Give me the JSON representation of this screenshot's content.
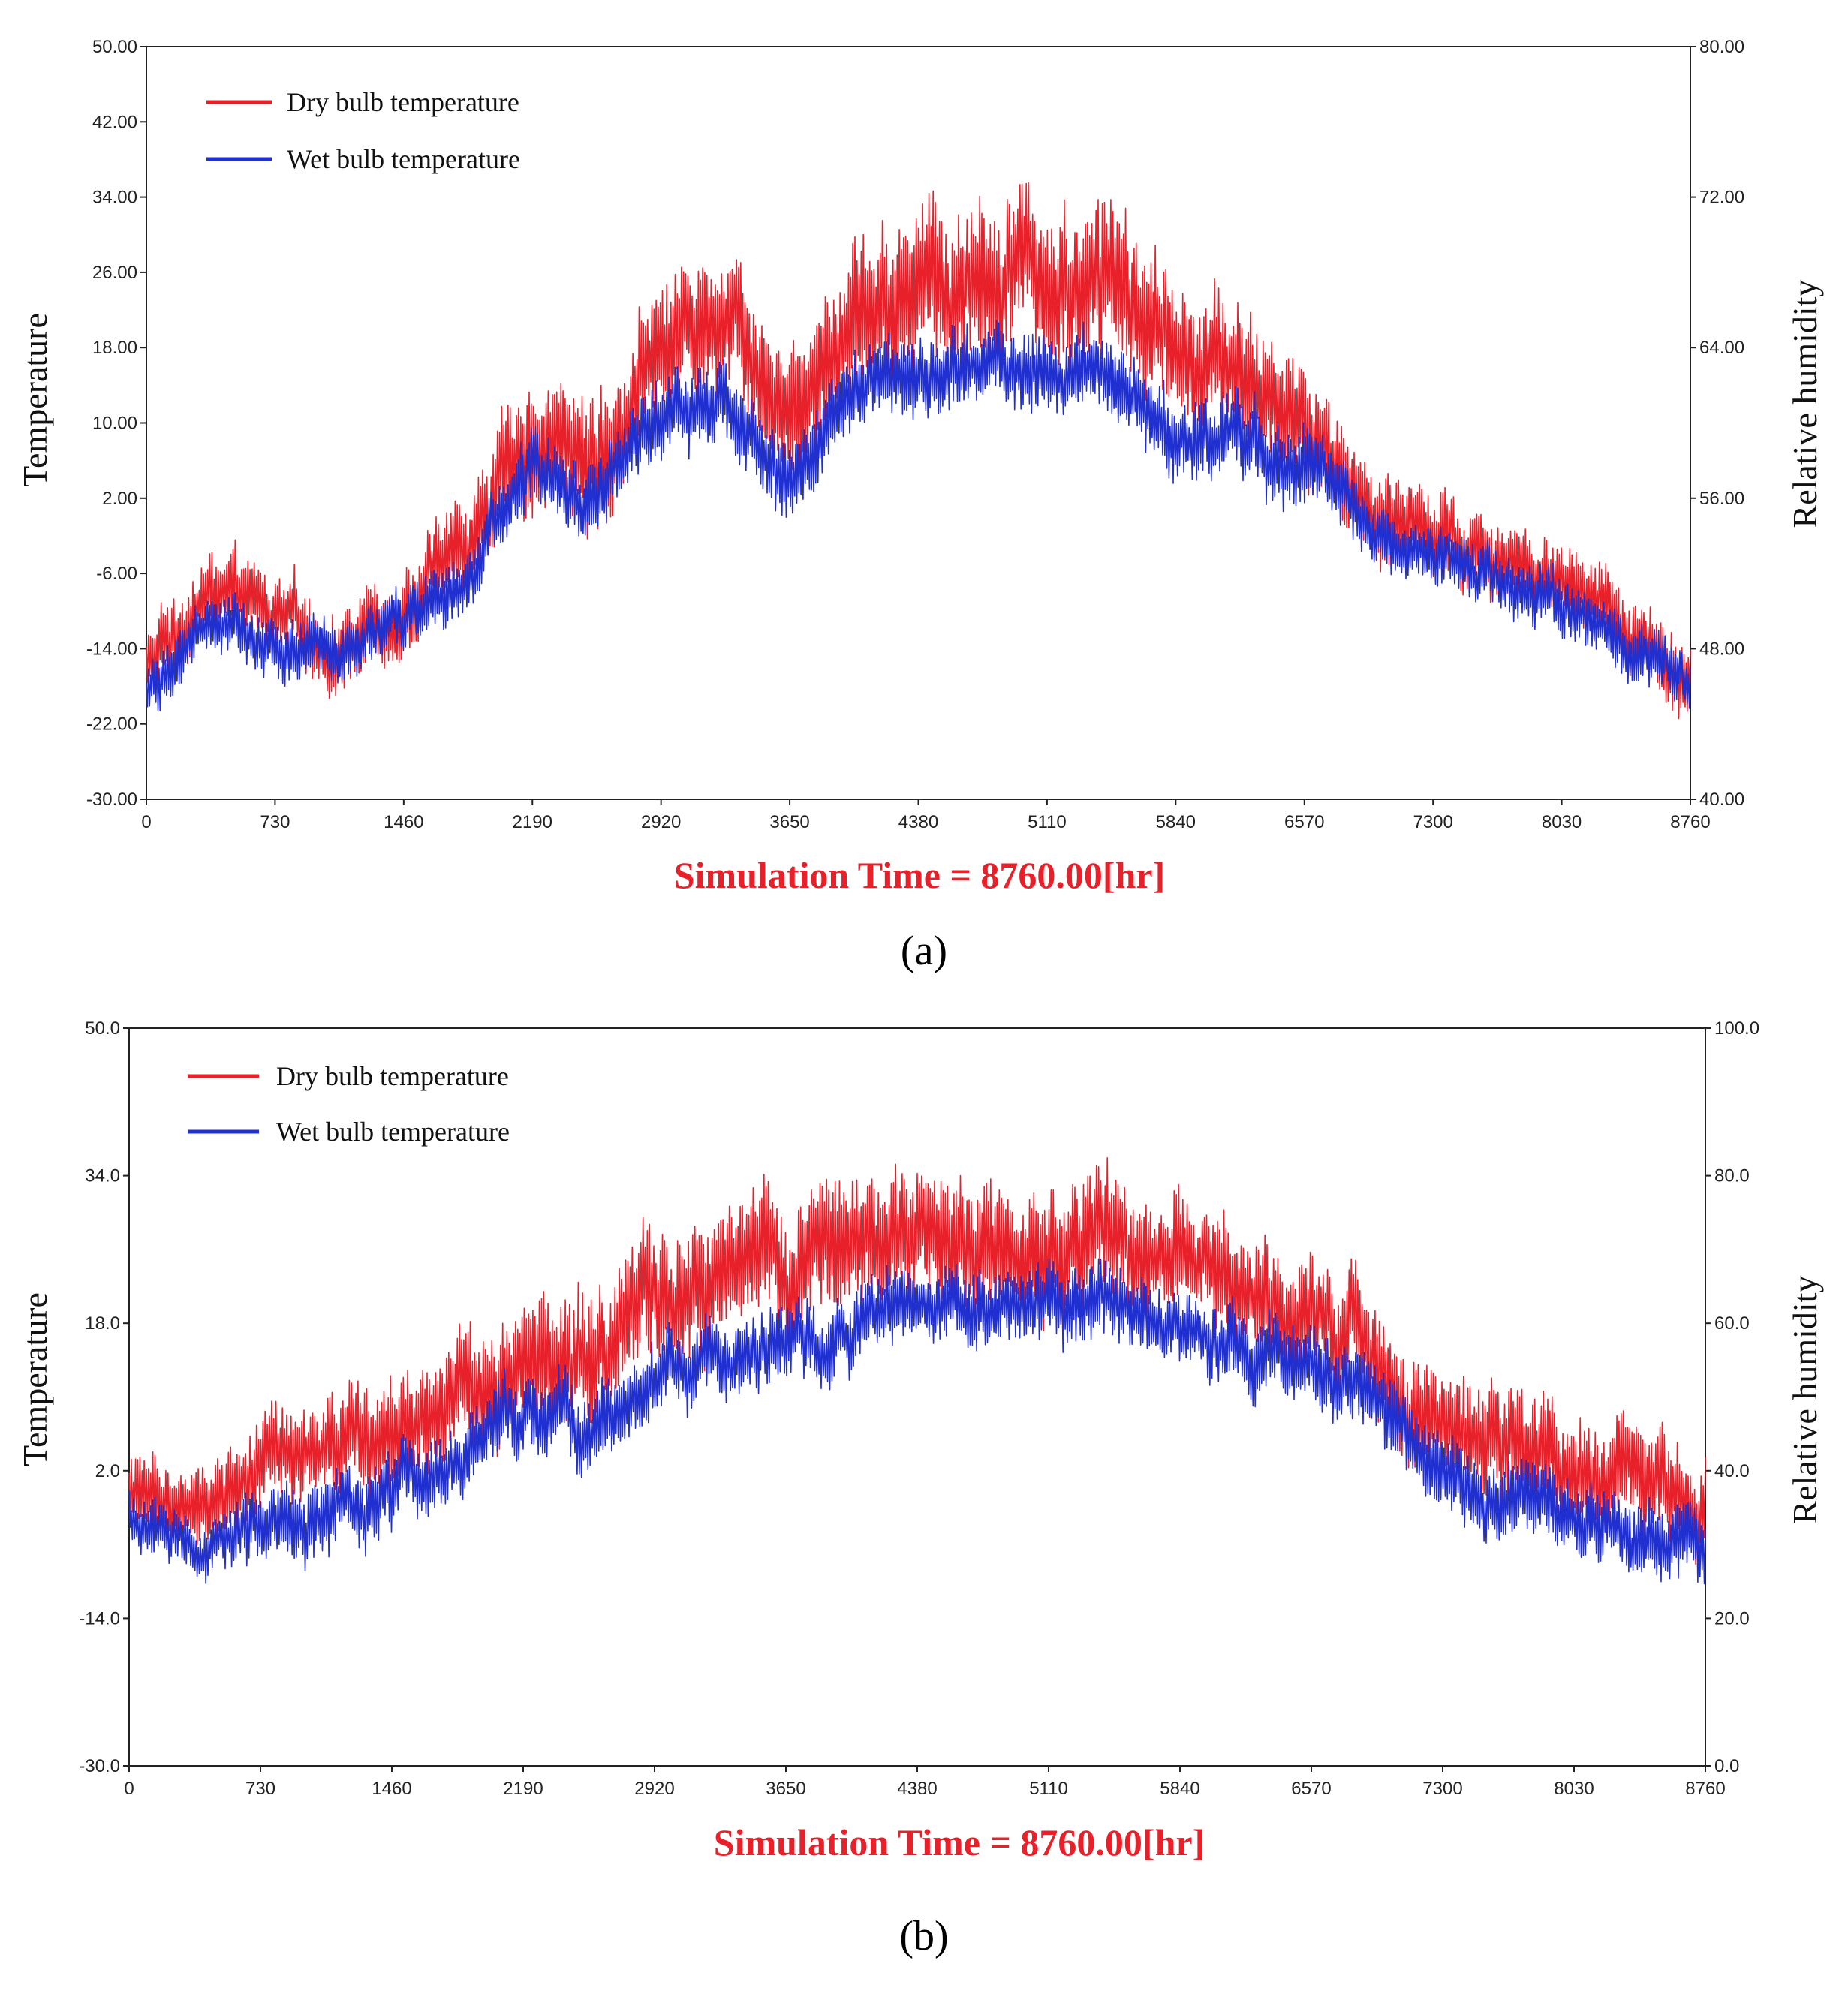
{
  "chart_data": [
    {
      "type": "line",
      "panel_label": "(a)",
      "xlabel": "Simulation Time = 8760.00[hr]",
      "ylabel": "Temperature",
      "y2label": "Relative humidity",
      "xlim": [
        0,
        8760
      ],
      "ylim": [
        -30,
        50
      ],
      "y2lim": [
        40,
        80
      ],
      "xticks": [
        "0",
        "730",
        "1460",
        "2190",
        "2920",
        "3650",
        "4380",
        "5110",
        "5840",
        "6570",
        "7300",
        "8030",
        "8760"
      ],
      "yticks": [
        "-30.00",
        "-22.00",
        "-14.00",
        "-6.00",
        "2.00",
        "10.00",
        "18.00",
        "26.00",
        "34.00",
        "42.00",
        "50.00"
      ],
      "y2ticks": [
        "40.00",
        "48.00",
        "56.00",
        "64.00",
        "72.00",
        "80.00"
      ],
      "legend": {
        "placement": "top-left"
      },
      "x": [
        0,
        365,
        730,
        1095,
        1460,
        1825,
        2190,
        2555,
        2920,
        3285,
        3650,
        4015,
        4380,
        4745,
        5110,
        5475,
        5840,
        6205,
        6570,
        6935,
        7300,
        7665,
        8030,
        8395,
        8760
      ],
      "series": [
        {
          "name": "Dry bulb temperature",
          "color": "#e8202a",
          "center": [
            -16,
            -8,
            -11,
            -14,
            -9,
            -3,
            9,
            6,
            18,
            23,
            12,
            22,
            25,
            26,
            26,
            25,
            17,
            15,
            10,
            1,
            -2,
            -4,
            -8,
            -12,
            -16
          ],
          "amplitude": [
            4,
            4,
            4,
            4,
            4,
            5,
            7,
            7,
            7,
            7,
            7,
            8,
            8,
            8,
            8,
            8,
            7,
            7,
            6,
            5,
            5,
            4,
            4,
            4,
            4
          ]
        },
        {
          "name": "Wet bulb temperature",
          "color": "#1f2fd0",
          "center": [
            -19,
            -11,
            -13,
            -16,
            -11,
            -5,
            5,
            3,
            10,
            12,
            5,
            13,
            14,
            15,
            15,
            14,
            9,
            8,
            6,
            -1,
            -4,
            -6,
            -10,
            -14,
            -18
          ],
          "amplitude": [
            3,
            3,
            3,
            3,
            3,
            3,
            4,
            4,
            4,
            4,
            4,
            4,
            4,
            4,
            4,
            4,
            4,
            4,
            4,
            3,
            3,
            3,
            3,
            3,
            3
          ]
        }
      ]
    },
    {
      "type": "line",
      "panel_label": "(b)",
      "xlabel": "Simulation Time = 8760.00[hr]",
      "ylabel": "Temperature",
      "y2label": "Relative humidity",
      "xlim": [
        0,
        8760
      ],
      "ylim": [
        -30,
        50
      ],
      "y2lim": [
        0,
        100
      ],
      "xticks": [
        "0",
        "730",
        "1460",
        "2190",
        "2920",
        "3650",
        "4380",
        "5110",
        "5840",
        "6570",
        "7300",
        "8030",
        "8760"
      ],
      "yticks": [
        "-30.0",
        "-14.0",
        "2.0",
        "18.0",
        "34.0",
        "50.0"
      ],
      "y2ticks": [
        "0.0",
        "20.0",
        "40.0",
        "60.0",
        "80.0",
        "100.0"
      ],
      "legend": {
        "placement": "top-left"
      },
      "x": [
        0,
        365,
        730,
        1095,
        1460,
        1825,
        2190,
        2555,
        2920,
        3285,
        3650,
        4015,
        4380,
        4745,
        5110,
        5475,
        5840,
        6205,
        6570,
        6935,
        7300,
        7665,
        8030,
        8395,
        8760
      ],
      "series": [
        {
          "name": "Dry bulb temperature",
          "color": "#e8202a",
          "center": [
            0,
            -3,
            2,
            3,
            7,
            10,
            15,
            13,
            20,
            22,
            24,
            26,
            27,
            27,
            26,
            26,
            24,
            21,
            18,
            15,
            6,
            5,
            3,
            2,
            -2
          ],
          "amplitude": [
            4,
            4,
            5,
            5,
            6,
            6,
            7,
            7,
            7,
            7,
            7,
            7,
            7,
            7,
            7,
            7,
            6,
            6,
            6,
            6,
            6,
            6,
            6,
            6,
            5
          ]
        },
        {
          "name": "Wet bulb temperature",
          "color": "#1f2fd0",
          "center": [
            -3,
            -7,
            -4,
            -3,
            0,
            3,
            8,
            7,
            12,
            14,
            15,
            18,
            19,
            20,
            19,
            20,
            18,
            14,
            12,
            10,
            1,
            -1,
            -3,
            -5,
            -7
          ],
          "amplitude": [
            3,
            3,
            4,
            4,
            4,
            4,
            4,
            4,
            4,
            4,
            4,
            4,
            4,
            4,
            4,
            4,
            4,
            4,
            4,
            4,
            4,
            4,
            4,
            4,
            4
          ]
        }
      ]
    }
  ]
}
